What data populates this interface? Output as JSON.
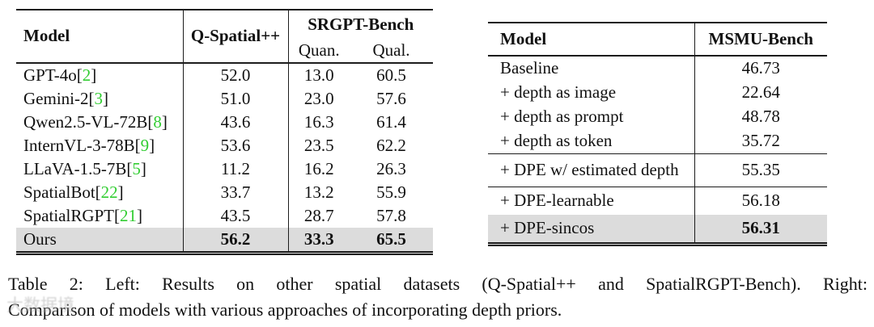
{
  "colors": {
    "citation_green": "#32cd32",
    "highlight_gray": "#dcdcdc",
    "rule": "#1c1c1c",
    "text": "#111111",
    "background": "#ffffff"
  },
  "left_table": {
    "headers": {
      "model": "Model",
      "qspatial": "Q-Spatial++",
      "group": "SRGPT-Bench",
      "quan": "Quan.",
      "qual": "Qual."
    },
    "rows": [
      {
        "model": "GPT-4o",
        "cite": "2",
        "qspatial": "52.0",
        "quan": "13.0",
        "qual": "60.5",
        "highlight": false,
        "bold_values": false
      },
      {
        "model": "Gemini-2",
        "cite": "3",
        "qspatial": "51.0",
        "quan": "23.0",
        "qual": "57.6",
        "highlight": false,
        "bold_values": false
      },
      {
        "model": "Qwen2.5-VL-72B",
        "cite": "8",
        "qspatial": "43.6",
        "quan": "16.3",
        "qual": "61.4",
        "highlight": false,
        "bold_values": false
      },
      {
        "model": "InternVL-3-78B",
        "cite": "9",
        "qspatial": "53.6",
        "quan": "23.5",
        "qual": "62.2",
        "highlight": false,
        "bold_values": false
      },
      {
        "model": "LLaVA-1.5-7B",
        "cite": "5",
        "qspatial": "11.2",
        "quan": "16.2",
        "qual": "26.3",
        "highlight": false,
        "bold_values": false
      },
      {
        "model": "SpatialBot",
        "cite": "22",
        "qspatial": "33.7",
        "quan": "13.2",
        "qual": "55.9",
        "highlight": false,
        "bold_values": false
      },
      {
        "model": "SpatialRGPT",
        "cite": "21",
        "qspatial": "43.5",
        "quan": "28.7",
        "qual": "57.8",
        "highlight": false,
        "bold_values": false
      },
      {
        "model": "Ours",
        "cite": null,
        "qspatial": "56.2",
        "quan": "33.3",
        "qual": "65.5",
        "highlight": true,
        "bold_values": true
      }
    ]
  },
  "right_table": {
    "headers": {
      "model": "Model",
      "bench": "MSMU-Bench"
    },
    "groups": [
      {
        "rows": [
          {
            "label": "Baseline",
            "value": "46.73",
            "highlight": false,
            "bold_value": false
          },
          {
            "label": "+ depth as image",
            "value": "22.64",
            "highlight": false,
            "bold_value": false
          },
          {
            "label": "+ depth as prompt",
            "value": "48.78",
            "highlight": false,
            "bold_value": false
          },
          {
            "label": "+ depth as token",
            "value": "35.72",
            "highlight": false,
            "bold_value": false
          }
        ]
      },
      {
        "rows": [
          {
            "label": "+ DPE w/ estimated depth",
            "value": "55.35",
            "highlight": false,
            "bold_value": false
          }
        ]
      },
      {
        "rows": [
          {
            "label": "+ DPE-learnable",
            "value": "56.18",
            "highlight": false,
            "bold_value": false
          },
          {
            "label": "+ DPE-sincos",
            "value": "56.31",
            "highlight": true,
            "bold_value": true
          }
        ]
      }
    ]
  },
  "caption": {
    "line1": "Table 2: Left: Results on other spatial datasets (Q-Spatial++ and SpatialRGPT-Bench). Right:",
    "line2": "Comparison of models with various approaches of incorporating depth priors."
  },
  "watermark": {
    "text": "大数据境"
  }
}
